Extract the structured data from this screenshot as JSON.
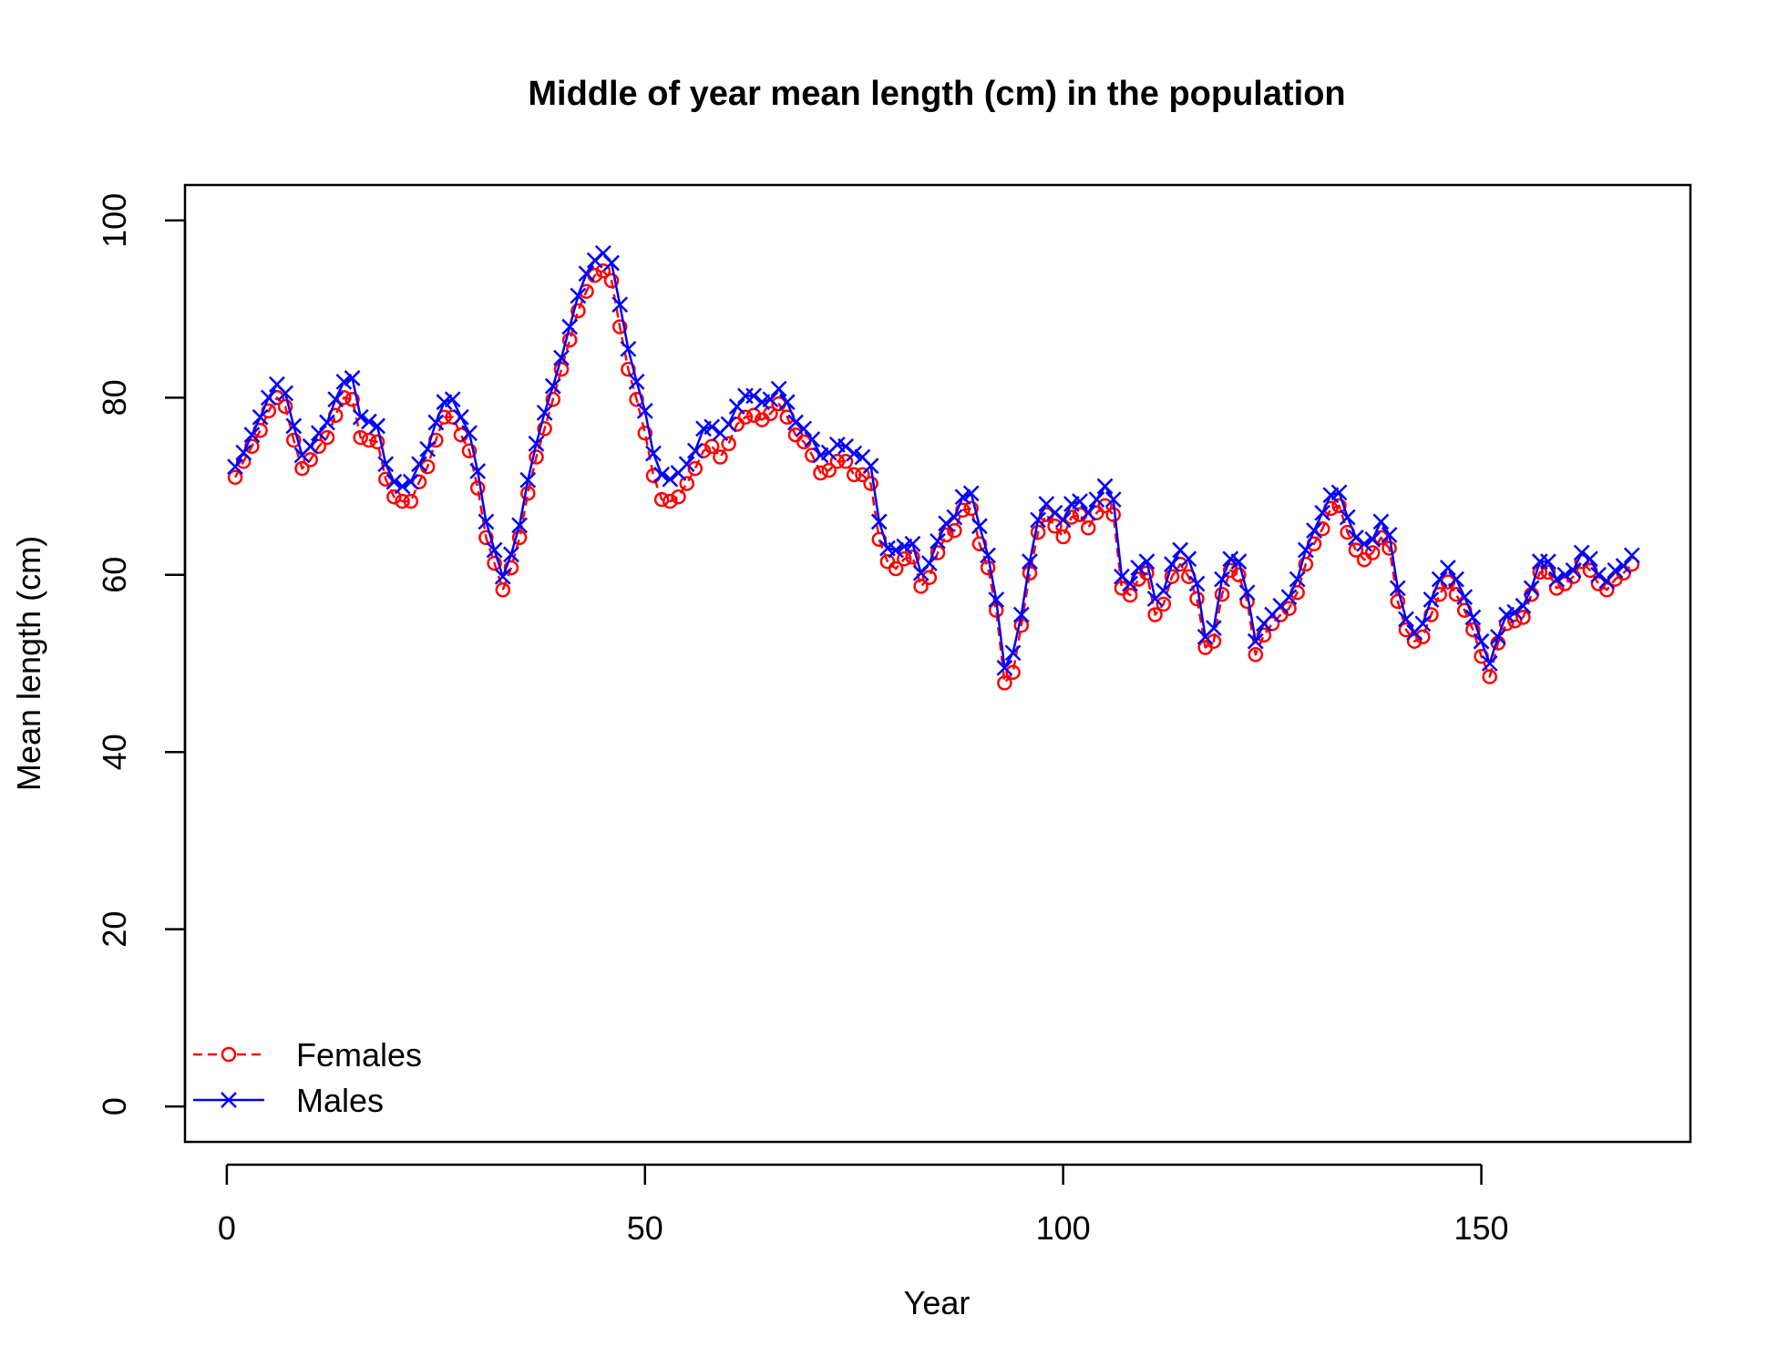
{
  "chart_data": {
    "type": "line",
    "title": "Middle of year mean length (cm) in the population",
    "xlabel": "Year",
    "ylabel": "Mean length (cm)",
    "xlim": [
      -5,
      175
    ],
    "ylim": [
      -4,
      104
    ],
    "xticks": [
      0,
      50,
      100,
      150
    ],
    "yticks": [
      0,
      20,
      40,
      60,
      80,
      100
    ],
    "grid": false,
    "legend_position": "bottom-left",
    "x_start": 1,
    "series": [
      {
        "name": "Females",
        "color": "#ff0000",
        "line_style": "dashed",
        "marker": "circle",
        "values": [
          71.0,
          72.8,
          74.5,
          76.3,
          78.5,
          80.0,
          79.0,
          75.2,
          72.0,
          73.0,
          74.5,
          75.5,
          78.0,
          80.0,
          79.8,
          75.5,
          75.2,
          75.0,
          70.8,
          68.8,
          68.3,
          68.3,
          70.5,
          72.2,
          75.2,
          77.8,
          77.8,
          75.8,
          74.0,
          69.8,
          64.2,
          61.3,
          58.3,
          60.8,
          64.2,
          69.2,
          73.3,
          76.5,
          79.8,
          83.2,
          86.5,
          89.8,
          92.0,
          93.8,
          94.3,
          93.2,
          88.0,
          83.2,
          79.8,
          76.0,
          71.2,
          68.5,
          68.3,
          68.8,
          70.3,
          72.0,
          74.0,
          74.5,
          73.3,
          74.8,
          77.0,
          77.8,
          78.0,
          77.5,
          78.2,
          79.3,
          77.8,
          75.8,
          75.0,
          73.5,
          71.5,
          71.8,
          72.8,
          72.8,
          71.3,
          71.3,
          70.3,
          64.0,
          61.5,
          60.7,
          61.8,
          62.0,
          58.7,
          59.7,
          62.5,
          64.5,
          65.0,
          67.3,
          67.5,
          63.5,
          60.8,
          56.0,
          47.8,
          49.0,
          54.3,
          60.2,
          64.8,
          66.8,
          65.5,
          64.3,
          66.5,
          66.8,
          65.3,
          67.0,
          67.8,
          66.8,
          58.5,
          57.7,
          59.5,
          60.2,
          55.5,
          56.7,
          59.8,
          61.2,
          59.8,
          57.3,
          51.8,
          52.5,
          57.8,
          60.5,
          60.0,
          57.0,
          51.0,
          53.2,
          54.5,
          55.5,
          56.2,
          58.0,
          61.2,
          63.5,
          65.2,
          67.5,
          67.8,
          64.8,
          62.8,
          61.7,
          62.5,
          64.2,
          63.0,
          57.0,
          53.8,
          52.5,
          53.0,
          55.5,
          57.8,
          59.2,
          57.8,
          56.0,
          53.8,
          50.8,
          48.5,
          52.3,
          54.5,
          54.8,
          55.2,
          57.8,
          60.3,
          60.3,
          58.5,
          59.0,
          59.8,
          61.5,
          60.5,
          59.0,
          58.3,
          59.5,
          60.2,
          61.2
        ]
      },
      {
        "name": "Males",
        "color": "#0000ff",
        "line_style": "solid",
        "marker": "x",
        "values": [
          72.2,
          73.8,
          75.8,
          77.8,
          80.0,
          81.5,
          80.5,
          76.8,
          73.5,
          74.5,
          76.0,
          77.2,
          79.8,
          81.8,
          82.2,
          77.8,
          77.3,
          76.8,
          72.5,
          70.5,
          70.0,
          70.5,
          72.5,
          74.2,
          77.2,
          79.5,
          79.8,
          77.8,
          76.0,
          71.7,
          66.0,
          62.8,
          59.8,
          62.3,
          65.6,
          70.7,
          74.8,
          78.3,
          81.3,
          84.5,
          88.0,
          91.5,
          94.0,
          95.5,
          96.3,
          95.2,
          90.5,
          85.5,
          81.8,
          78.5,
          73.7,
          71.3,
          70.8,
          71.5,
          72.5,
          74.0,
          76.5,
          76.7,
          76.0,
          77.0,
          79.0,
          80.2,
          80.2,
          79.5,
          79.8,
          81.0,
          79.5,
          77.2,
          76.5,
          75.3,
          73.5,
          73.8,
          74.7,
          74.5,
          73.7,
          73.3,
          72.3,
          66.0,
          63.0,
          62.8,
          63.2,
          63.5,
          60.2,
          61.3,
          63.8,
          65.8,
          66.5,
          68.8,
          69.2,
          65.5,
          62.2,
          57.2,
          49.5,
          51.2,
          55.5,
          61.5,
          66.2,
          68.0,
          67.0,
          66.2,
          68.0,
          68.3,
          67.0,
          68.5,
          70.0,
          68.5,
          59.8,
          59.0,
          60.8,
          61.5,
          57.3,
          58.2,
          61.2,
          62.8,
          61.8,
          59.0,
          53.0,
          54.0,
          59.5,
          61.8,
          61.5,
          58.0,
          52.5,
          54.5,
          55.5,
          56.5,
          57.5,
          59.5,
          62.8,
          65.0,
          67.0,
          69.0,
          69.3,
          66.5,
          64.2,
          63.5,
          64.0,
          66.0,
          64.5,
          58.5,
          55.0,
          53.5,
          54.5,
          57.2,
          59.5,
          60.8,
          59.5,
          57.5,
          55.2,
          52.5,
          50.0,
          53.0,
          55.5,
          55.8,
          56.5,
          58.5,
          61.5,
          61.5,
          59.5,
          60.0,
          60.5,
          62.5,
          61.8,
          60.0,
          59.3,
          60.5,
          61.0,
          62.2
        ]
      }
    ]
  }
}
